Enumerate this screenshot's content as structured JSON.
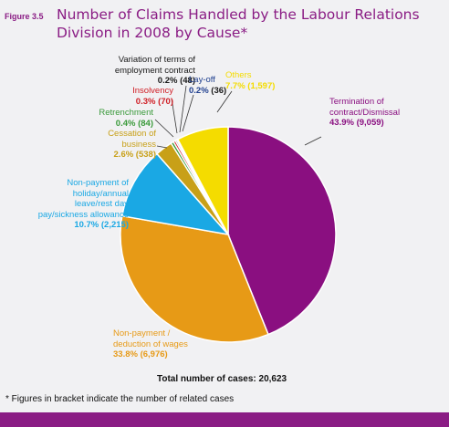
{
  "figure_label": "Figure 3.5",
  "title_line1": "Number of Claims Handled by the Labour Relations",
  "title_line2": "Division in 2008 by Cause*",
  "total_text": "Total number of cases: 20,623",
  "footnote": "* Figures in bracket indicate the number of related cases",
  "chart_data": {
    "type": "pie",
    "title": "Number of Claims Handled by the Labour Relations Division in 2008 by Cause*",
    "total": 20623,
    "slices": [
      {
        "name_lines": [
          "Termination of",
          "contract/Dismissal"
        ],
        "pct_text": "43.9%",
        "count_text": "(9,059)",
        "value": 9059,
        "color": "#8a0f80"
      },
      {
        "name_lines": [
          "Non-payment /",
          "deduction of wages"
        ],
        "pct_text": "33.8%",
        "count_text": "(6,976)",
        "value": 6976,
        "color": "#e79a16"
      },
      {
        "name_lines": [
          "Non-payment of",
          "holiday/annual",
          "leave/rest day",
          "pay/sickness allowance"
        ],
        "pct_text": "10.7%",
        "count_text": "(2,215)",
        "value": 2215,
        "color": "#1aa8e4"
      },
      {
        "name_lines": [
          "Cessation of",
          "business"
        ],
        "pct_text": "2.6%",
        "count_text": "(538)",
        "value": 538,
        "color": "#c8a018"
      },
      {
        "name_lines": [
          "Retrenchment"
        ],
        "pct_text": "0.4%",
        "count_text": "(84)",
        "value": 84,
        "color": "#3a9a3a"
      },
      {
        "name_lines": [
          "Insolvency"
        ],
        "pct_text": "0.3%",
        "count_text": "(70)",
        "value": 70,
        "color": "#d01f26"
      },
      {
        "name_lines": [
          "Variation of terms of",
          "employment contract"
        ],
        "pct_text": "0.2%",
        "count_text": "(48)",
        "value": 48,
        "color": "#1a1a1a"
      },
      {
        "name_lines": [
          "Lay-off"
        ],
        "pct_text": "0.2%",
        "count_text": "(36)",
        "value": 36,
        "color": "#1f3f8f"
      },
      {
        "name_lines": [
          "Others"
        ],
        "pct_text": "7.7%",
        "count_text": "(1,597)",
        "value": 1597,
        "color": "#f4dc00"
      }
    ]
  }
}
